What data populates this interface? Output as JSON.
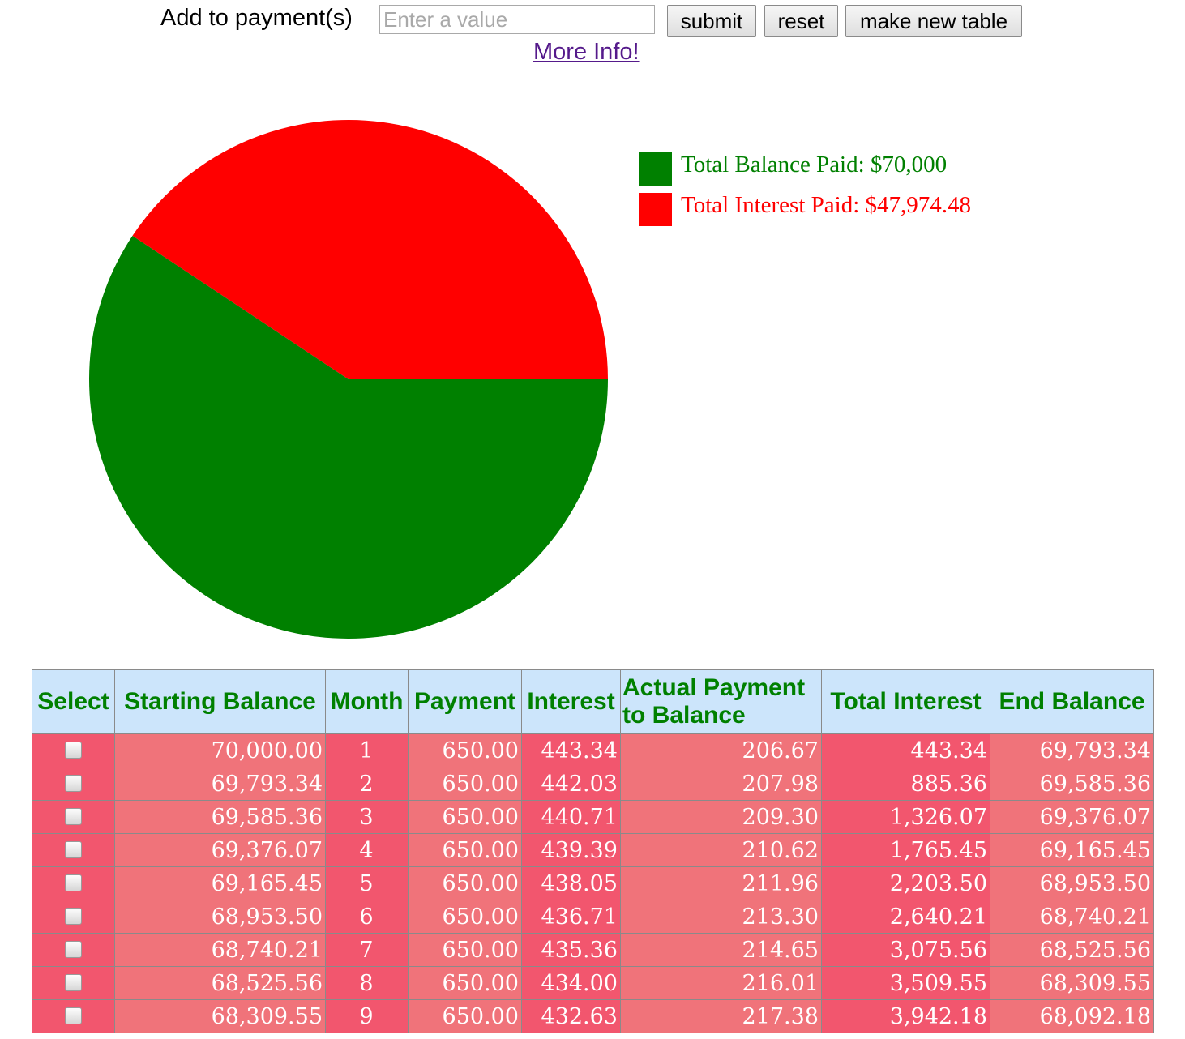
{
  "toolbar": {
    "label": "Add to payment(s)",
    "input_placeholder": "Enter a value",
    "input_value": "",
    "submit_label": "submit",
    "reset_label": "reset",
    "new_table_label": "make new table",
    "more_info_label": "More Info!"
  },
  "chart_data": {
    "type": "pie",
    "slices": [
      {
        "label": "Total Balance Paid: $70,000",
        "value": 70000,
        "color": "#008000"
      },
      {
        "label": "Total Interest Paid: $47,974.48",
        "value": 47974.48,
        "color": "#ff0000"
      }
    ],
    "legend_position": "right"
  },
  "table": {
    "headers": [
      "Select",
      "Starting Balance",
      "Month",
      "Payment",
      "Interest",
      "Actual Payment to Balance",
      "Total Interest",
      "End Balance"
    ],
    "rows": [
      {
        "starting_balance": "70,000.00",
        "month": "1",
        "payment": "650.00",
        "interest": "443.34",
        "actual_payment": "206.67",
        "total_interest": "443.34",
        "end_balance": "69,793.34"
      },
      {
        "starting_balance": "69,793.34",
        "month": "2",
        "payment": "650.00",
        "interest": "442.03",
        "actual_payment": "207.98",
        "total_interest": "885.36",
        "end_balance": "69,585.36"
      },
      {
        "starting_balance": "69,585.36",
        "month": "3",
        "payment": "650.00",
        "interest": "440.71",
        "actual_payment": "209.30",
        "total_interest": "1,326.07",
        "end_balance": "69,376.07"
      },
      {
        "starting_balance": "69,376.07",
        "month": "4",
        "payment": "650.00",
        "interest": "439.39",
        "actual_payment": "210.62",
        "total_interest": "1,765.45",
        "end_balance": "69,165.45"
      },
      {
        "starting_balance": "69,165.45",
        "month": "5",
        "payment": "650.00",
        "interest": "438.05",
        "actual_payment": "211.96",
        "total_interest": "2,203.50",
        "end_balance": "68,953.50"
      },
      {
        "starting_balance": "68,953.50",
        "month": "6",
        "payment": "650.00",
        "interest": "436.71",
        "actual_payment": "213.30",
        "total_interest": "2,640.21",
        "end_balance": "68,740.21"
      },
      {
        "starting_balance": "68,740.21",
        "month": "7",
        "payment": "650.00",
        "interest": "435.36",
        "actual_payment": "214.65",
        "total_interest": "3,075.56",
        "end_balance": "68,525.56"
      },
      {
        "starting_balance": "68,525.56",
        "month": "8",
        "payment": "650.00",
        "interest": "434.00",
        "actual_payment": "216.01",
        "total_interest": "3,509.55",
        "end_balance": "68,309.55"
      },
      {
        "starting_balance": "68,309.55",
        "month": "9",
        "payment": "650.00",
        "interest": "432.63",
        "actual_payment": "217.38",
        "total_interest": "3,942.18",
        "end_balance": "68,092.18"
      }
    ]
  },
  "colors": {
    "header_bg": "#cce5fb",
    "header_text": "#008000",
    "cell_dark": "#f2566e",
    "cell_light": "#f0737a",
    "link": "#551a8b"
  }
}
